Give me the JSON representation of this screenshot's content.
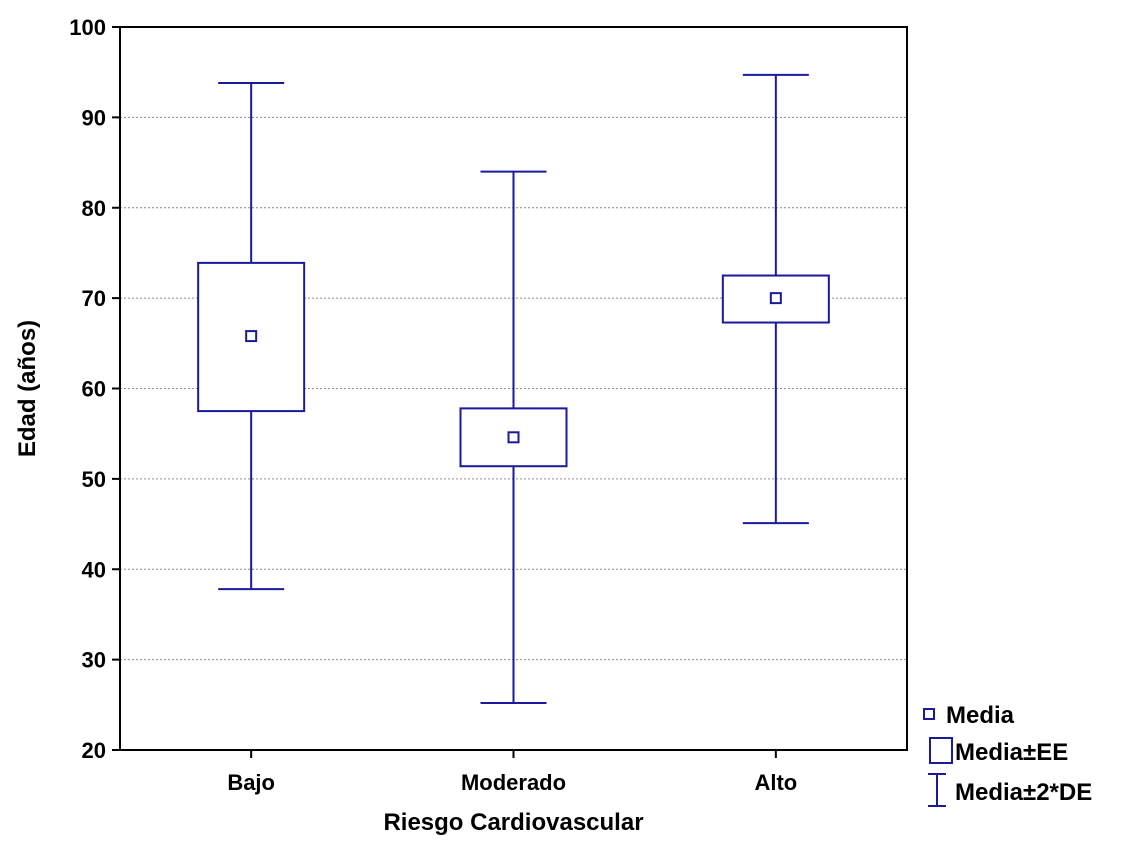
{
  "chart_data": {
    "type": "box",
    "xlabel": "Riesgo Cardiovascular",
    "ylabel": "Edad (años)",
    "ylim": [
      20,
      100
    ],
    "yticks": [
      20,
      30,
      40,
      50,
      60,
      70,
      80,
      90,
      100
    ],
    "grid": true,
    "legend_position": "bottom-right",
    "categories": [
      "Bajo",
      "Moderado",
      "Alto"
    ],
    "series": [
      {
        "stats": [
          {
            "mean": 65.8,
            "se_low": 57.5,
            "se_high": 73.9,
            "sd2_low": 37.8,
            "sd2_high": 93.8
          },
          {
            "mean": 54.6,
            "se_low": 51.4,
            "se_high": 57.8,
            "sd2_low": 25.2,
            "sd2_high": 84.0
          },
          {
            "mean": 70.0,
            "se_low": 67.3,
            "se_high": 72.5,
            "sd2_low": 45.1,
            "sd2_high": 94.7
          }
        ]
      }
    ],
    "legend": [
      {
        "key": "mean",
        "label": "Media"
      },
      {
        "key": "se",
        "label": "Media±EE"
      },
      {
        "key": "sd2",
        "label": "Media±2*DE"
      }
    ],
    "color": "#1a1a9c"
  }
}
